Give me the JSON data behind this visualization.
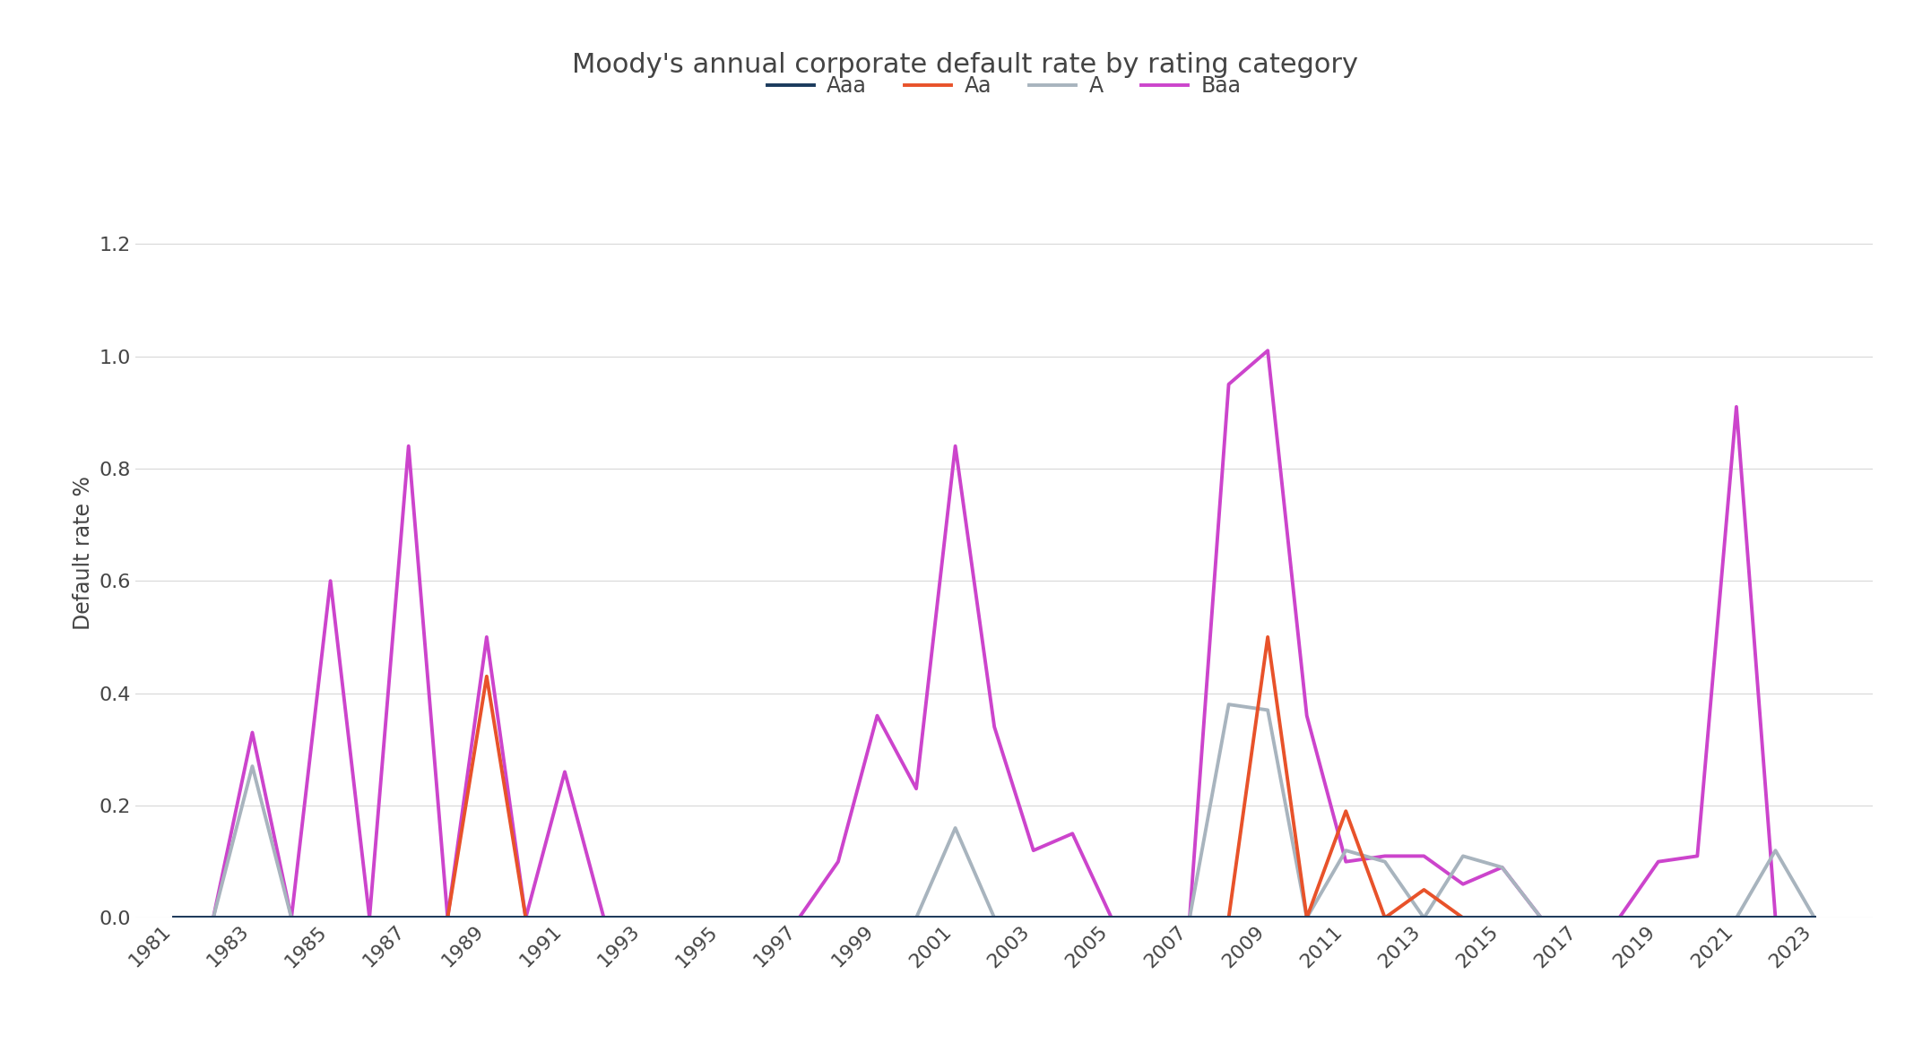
{
  "title": "Moody's annual corporate default rate by rating category",
  "ylabel": "Default rate %",
  "years": [
    1981,
    1982,
    1983,
    1984,
    1985,
    1986,
    1987,
    1988,
    1989,
    1990,
    1991,
    1992,
    1993,
    1994,
    1995,
    1996,
    1997,
    1998,
    1999,
    2000,
    2001,
    2002,
    2003,
    2004,
    2005,
    2006,
    2007,
    2008,
    2009,
    2010,
    2011,
    2012,
    2013,
    2014,
    2015,
    2016,
    2017,
    2018,
    2019,
    2020,
    2021,
    2022,
    2023
  ],
  "Aaa": [
    0,
    0,
    0,
    0,
    0,
    0,
    0,
    0,
    0,
    0,
    0,
    0,
    0,
    0,
    0,
    0,
    0,
    0,
    0,
    0,
    0,
    0,
    0,
    0,
    0,
    0,
    0,
    0,
    0,
    0,
    0,
    0,
    0,
    0,
    0,
    0,
    0,
    0,
    0,
    0,
    0,
    0,
    0
  ],
  "Aa": [
    0,
    0,
    0,
    0,
    0,
    0,
    0,
    0,
    0.43,
    0,
    0,
    0,
    0,
    0,
    0,
    0,
    0,
    0,
    0,
    0,
    0,
    0,
    0,
    0,
    0,
    0,
    0,
    0,
    0.5,
    0,
    0.19,
    0,
    0.05,
    0,
    0,
    0,
    0,
    0,
    0,
    0,
    0,
    0,
    0
  ],
  "A": [
    0,
    0,
    0.27,
    0,
    0,
    0,
    0,
    0,
    0,
    0,
    0,
    0,
    0,
    0,
    0,
    0,
    0,
    0,
    0,
    0,
    0.16,
    0,
    0,
    0,
    0,
    0,
    0,
    0.38,
    0.37,
    0,
    0.12,
    0.1,
    0,
    0.11,
    0.09,
    0,
    0,
    0,
    0,
    0,
    0,
    0.12,
    0
  ],
  "Baa": [
    0,
    0,
    0.33,
    0,
    0.6,
    0,
    0.84,
    0,
    0.5,
    0,
    0.26,
    0,
    0,
    0,
    0,
    0,
    0,
    0.1,
    0.36,
    0.23,
    0.84,
    0.34,
    0.12,
    0.15,
    0,
    0,
    0,
    0.95,
    1.01,
    0.36,
    0.1,
    0.11,
    0.11,
    0.06,
    0.09,
    0,
    0,
    0,
    0.1,
    0.11,
    0.91,
    0,
    0
  ],
  "Aaa_color": "#1a3a5c",
  "Aa_color": "#e8522a",
  "A_color": "#a8b4be",
  "Baa_color": "#cc44cc",
  "background_color": "#ffffff",
  "ylim": [
    0,
    1.3
  ],
  "yticks": [
    0.0,
    0.2,
    0.4,
    0.6,
    0.8,
    1.0,
    1.2
  ],
  "xtick_years": [
    1981,
    1983,
    1985,
    1987,
    1989,
    1991,
    1993,
    1995,
    1997,
    1999,
    2001,
    2003,
    2005,
    2007,
    2009,
    2011,
    2013,
    2015,
    2017,
    2019,
    2021,
    2023
  ],
  "linewidth": 2.8,
  "title_fontsize": 22,
  "label_fontsize": 17,
  "tick_fontsize": 16,
  "legend_fontsize": 17
}
